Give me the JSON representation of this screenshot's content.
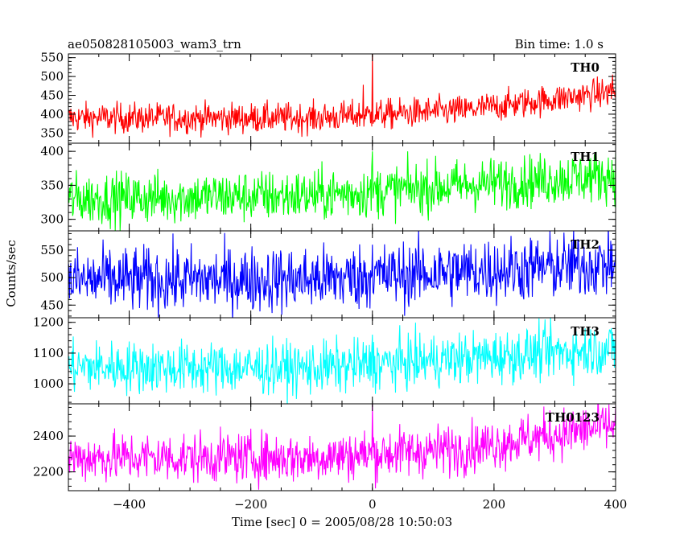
{
  "header": {
    "title": "ae050828105003_wam3_trn",
    "bin_time": "Bin time: 1.0 s"
  },
  "axes": {
    "xlabel": "Time [sec] 0 = 2005/08/28 10:50:03",
    "ylabel": "Counts/sec"
  },
  "chart_data": {
    "type": "line",
    "title": "ae050828105003_wam3_trn",
    "subtitle": "Bin time: 1.0 s",
    "xlabel": "Time [sec] 0 = 2005/08/28 10:50:03",
    "ylabel": "Counts/sec",
    "xlim": [
      -500,
      400
    ],
    "x_ticks": [
      -400,
      -200,
      0,
      200,
      400
    ],
    "x_tick_labels": [
      "−400",
      "−200",
      "0",
      "200",
      "400"
    ],
    "x_sampling": "1.0 s bins from -500 to 400",
    "grid": false,
    "panels": [
      {
        "name": "TH0",
        "color": "#ff0000",
        "ylim": [
          323,
          560
        ],
        "y_ticks": [
          350,
          400,
          450,
          500,
          550
        ],
        "trend": {
          "x": [
            -500,
            -100,
            150,
            400
          ],
          "y": [
            390,
            390,
            410,
            460
          ]
        },
        "noise_amplitude": 40,
        "spikes": [
          {
            "x": 0,
            "y": 570
          },
          {
            "x": -15,
            "y": 478
          },
          {
            "x": 395,
            "y": 505
          }
        ]
      },
      {
        "name": "TH1",
        "color": "#00ff00",
        "ylim": [
          283,
          412
        ],
        "y_ticks": [
          300,
          350,
          400
        ],
        "trend": {
          "x": [
            -500,
            -100,
            400
          ],
          "y": [
            330,
            335,
            365
          ]
        },
        "noise_amplitude": 38,
        "spikes": [
          {
            "x": 0,
            "y": 400
          }
        ]
      },
      {
        "name": "TH2",
        "color": "#0000ff",
        "ylim": [
          427,
          585
        ],
        "y_ticks": [
          450,
          500,
          550
        ],
        "trend": {
          "x": [
            -500,
            -100,
            400
          ],
          "y": [
            495,
            497,
            525
          ]
        },
        "noise_amplitude": 60,
        "spikes": [
          {
            "x": 0,
            "y": 560
          }
        ]
      },
      {
        "name": "TH3",
        "color": "#00ffff",
        "ylim": [
          935,
          1215
        ],
        "y_ticks": [
          1000,
          1100,
          1200
        ],
        "trend": {
          "x": [
            -500,
            -100,
            400
          ],
          "y": [
            1055,
            1050,
            1115
          ]
        },
        "noise_amplitude": 85,
        "spikes": [
          {
            "x": 0,
            "y": 1160
          }
        ]
      },
      {
        "name": "TH0123",
        "color": "#ff00ff",
        "ylim": [
          2095,
          2580
        ],
        "y_ticks": [
          2200,
          2400
        ],
        "trend": {
          "x": [
            -500,
            -100,
            150,
            400
          ],
          "y": [
            2280,
            2280,
            2330,
            2460
          ]
        },
        "noise_amplitude": 140,
        "spikes": [
          {
            "x": 0,
            "y": 2580
          }
        ]
      }
    ]
  }
}
